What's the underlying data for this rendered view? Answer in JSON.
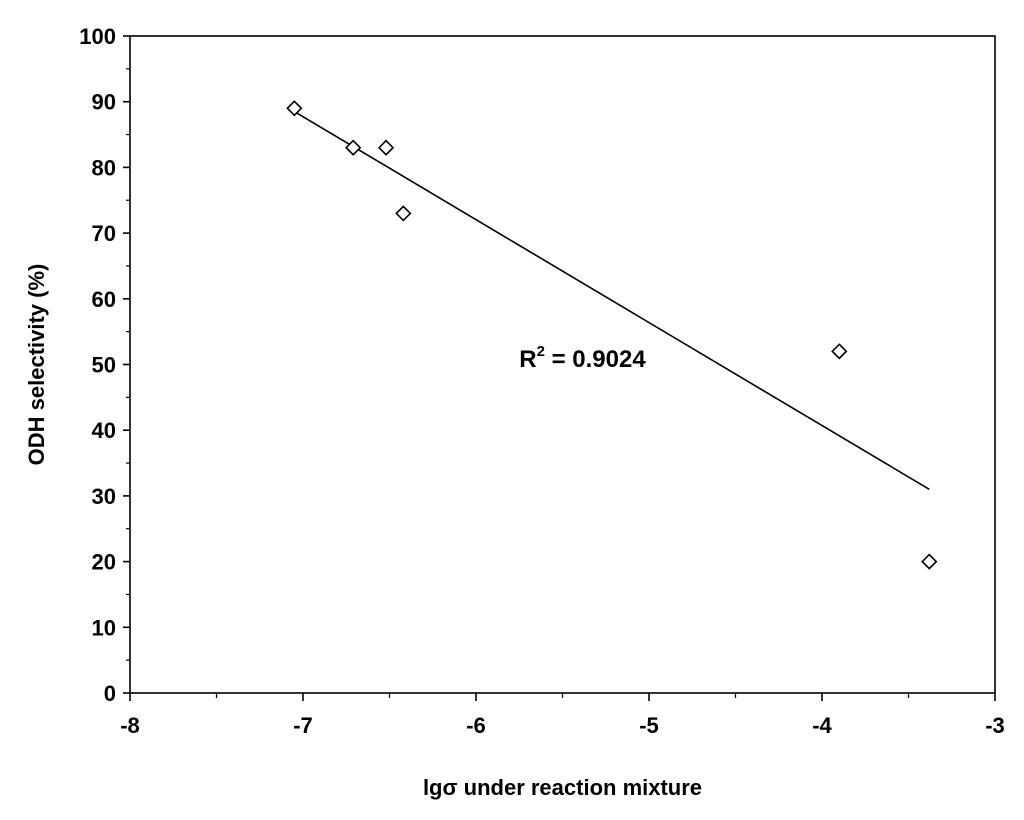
{
  "chart_data": {
    "type": "scatter",
    "xlabel": "lgσ under reaction mixture",
    "ylabel": "ODH selectivity (%)",
    "xlim": [
      -8,
      -3
    ],
    "ylim": [
      0,
      100
    ],
    "x_ticks": [
      -8,
      -7,
      -6,
      -5,
      -4,
      -3
    ],
    "y_ticks": [
      0,
      10,
      20,
      30,
      40,
      50,
      60,
      70,
      80,
      90,
      100
    ],
    "x_tick_labels": [
      "-8",
      "-7",
      "-6",
      "-5",
      "-4",
      "-3"
    ],
    "y_tick_labels": [
      "0",
      "10",
      "20",
      "30",
      "40",
      "50",
      "60",
      "70",
      "80",
      "90",
      "100"
    ],
    "marker": "open-diamond",
    "grid": false,
    "series": [
      {
        "points": [
          {
            "x": -7.05,
            "y": 89
          },
          {
            "x": -6.71,
            "y": 83
          },
          {
            "x": -6.52,
            "y": 83
          },
          {
            "x": -6.42,
            "y": 73
          },
          {
            "x": -3.9,
            "y": 52
          },
          {
            "x": -3.38,
            "y": 20
          }
        ]
      }
    ],
    "trendline": {
      "type": "linear",
      "x_start": -7.05,
      "x_end": -3.38,
      "y_start": 88.5,
      "y_end": 31
    },
    "annotation": {
      "base": "R",
      "sup": "2",
      "rest": " = 0.9024",
      "x": -5.75,
      "y": 51
    }
  }
}
